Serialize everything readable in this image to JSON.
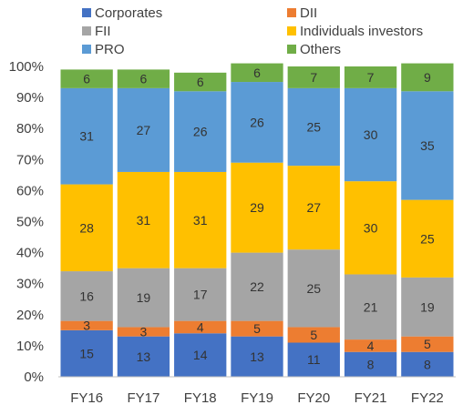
{
  "chart_data": {
    "type": "bar",
    "stacked": true,
    "percent_stacked": true,
    "categories": [
      "FY16",
      "FY17",
      "FY18",
      "FY19",
      "FY20",
      "FY21",
      "FY22"
    ],
    "series": [
      {
        "name": "Corporates",
        "color": "#4472C4",
        "values": [
          15,
          13,
          14,
          13,
          11,
          8,
          8
        ]
      },
      {
        "name": "DII",
        "color": "#ED7D31",
        "values": [
          3,
          3,
          4,
          5,
          5,
          4,
          5
        ]
      },
      {
        "name": "FII",
        "color": "#A5A5A5",
        "values": [
          16,
          19,
          17,
          22,
          25,
          21,
          19
        ]
      },
      {
        "name": "Individuals investors",
        "color": "#FFC000",
        "values": [
          28,
          31,
          31,
          29,
          27,
          30,
          25
        ]
      },
      {
        "name": "PRO",
        "color": "#5B9BD5",
        "values": [
          31,
          27,
          26,
          26,
          25,
          30,
          35
        ]
      },
      {
        "name": "Others",
        "color": "#70AD47",
        "values": [
          6,
          6,
          6,
          6,
          7,
          7,
          9
        ]
      }
    ],
    "y_tick_labels": [
      "0%",
      "10%",
      "20%",
      "30%",
      "40%",
      "50%",
      "60%",
      "70%",
      "80%",
      "90%",
      "100%"
    ],
    "ylim": [
      0,
      100
    ],
    "grid": false,
    "legend_position": "top",
    "legend_columns": 2
  }
}
